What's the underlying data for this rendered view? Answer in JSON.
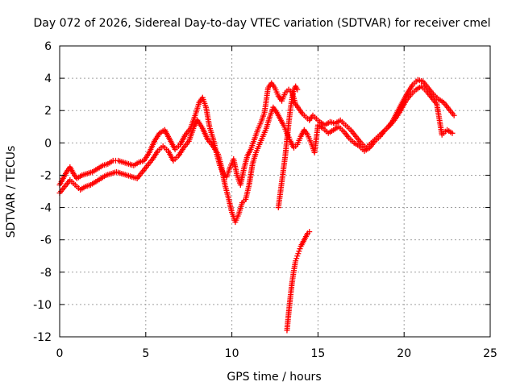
{
  "chart_data": {
    "type": "scatter",
    "title": "Day 072 of 2026, Sidereal Day-to-day VTEC variation (SDTVAR) for receiver cmel",
    "xlabel": "GPS time / hours",
    "ylabel": "SDTVAR / TECUs",
    "xlim": [
      0,
      25
    ],
    "ylim": [
      -12,
      6
    ],
    "x_ticks": [
      0,
      5,
      10,
      15,
      20,
      25
    ],
    "x_tick_labels": [
      "0",
      "5",
      "10",
      "15",
      "20",
      "25"
    ],
    "y_ticks": [
      -12,
      -10,
      -8,
      -6,
      -4,
      -2,
      0,
      2,
      4,
      6
    ],
    "y_tick_labels": [
      "-12",
      "-10",
      "-8",
      "-6",
      "-4",
      "-2",
      "0",
      "2",
      "4",
      "6"
    ],
    "grid": true,
    "marker": "+",
    "series": [
      {
        "name": "SDTVAR-a",
        "color": "#ff0000",
        "points": [
          [
            0.0,
            -2.6
          ],
          [
            0.2,
            -2.2
          ],
          [
            0.4,
            -1.8
          ],
          [
            0.6,
            -1.5
          ],
          [
            0.8,
            -1.9
          ],
          [
            1.0,
            -2.2
          ],
          [
            1.3,
            -2.0
          ],
          [
            1.6,
            -1.9
          ],
          [
            1.9,
            -1.8
          ],
          [
            2.2,
            -1.6
          ],
          [
            2.5,
            -1.4
          ],
          [
            2.8,
            -1.3
          ],
          [
            3.1,
            -1.1
          ],
          [
            3.4,
            -1.1
          ],
          [
            3.7,
            -1.2
          ],
          [
            4.0,
            -1.3
          ],
          [
            4.3,
            -1.4
          ],
          [
            4.6,
            -1.2
          ],
          [
            4.9,
            -1.1
          ],
          [
            5.2,
            -0.6
          ],
          [
            5.5,
            0.1
          ],
          [
            5.8,
            0.6
          ],
          [
            6.1,
            0.8
          ],
          [
            6.4,
            0.2
          ],
          [
            6.7,
            -0.4
          ],
          [
            7.0,
            -0.1
          ],
          [
            7.3,
            0.5
          ],
          [
            7.6,
            0.9
          ],
          [
            7.9,
            1.8
          ],
          [
            8.1,
            2.5
          ],
          [
            8.3,
            2.8
          ],
          [
            8.5,
            2.2
          ],
          [
            8.7,
            1.0
          ],
          [
            8.9,
            0.3
          ],
          [
            9.1,
            -0.6
          ],
          [
            9.3,
            -1.4
          ],
          [
            9.5,
            -1.9
          ],
          [
            9.7,
            -2.1
          ],
          [
            9.9,
            -1.5
          ],
          [
            10.1,
            -1.0
          ],
          [
            10.3,
            -2.0
          ],
          [
            10.5,
            -2.6
          ],
          [
            10.7,
            -1.6
          ],
          [
            10.9,
            -0.8
          ],
          [
            11.1,
            -0.4
          ],
          [
            11.3,
            0.2
          ],
          [
            11.5,
            0.8
          ],
          [
            11.7,
            1.3
          ],
          [
            11.9,
            1.9
          ],
          [
            12.1,
            3.4
          ],
          [
            12.3,
            3.7
          ],
          [
            12.5,
            3.4
          ],
          [
            12.7,
            2.9
          ],
          [
            12.9,
            2.6
          ],
          [
            13.1,
            3.1
          ],
          [
            13.3,
            3.3
          ],
          [
            13.5,
            3.1
          ],
          [
            13.7,
            2.4
          ],
          [
            13.9,
            2.1
          ],
          [
            14.1,
            1.8
          ],
          [
            14.3,
            1.6
          ],
          [
            14.5,
            1.4
          ],
          [
            14.7,
            1.7
          ],
          [
            14.9,
            1.5
          ],
          [
            15.1,
            1.3
          ],
          [
            15.4,
            1.1
          ],
          [
            15.7,
            1.3
          ],
          [
            16.0,
            1.2
          ],
          [
            16.3,
            1.4
          ],
          [
            16.6,
            1.1
          ],
          [
            16.9,
            0.8
          ],
          [
            17.2,
            0.4
          ],
          [
            17.5,
            0.0
          ],
          [
            17.8,
            -0.3
          ],
          [
            18.1,
            0.0
          ],
          [
            18.4,
            0.3
          ],
          [
            18.7,
            0.6
          ],
          [
            19.0,
            0.9
          ],
          [
            19.3,
            1.3
          ],
          [
            19.6,
            1.9
          ],
          [
            19.9,
            2.5
          ],
          [
            20.2,
            3.1
          ],
          [
            20.5,
            3.6
          ],
          [
            20.8,
            3.9
          ],
          [
            21.1,
            3.8
          ],
          [
            21.4,
            3.4
          ],
          [
            21.7,
            3.0
          ],
          [
            22.0,
            2.7
          ],
          [
            22.3,
            2.5
          ],
          [
            22.6,
            2.1
          ],
          [
            22.9,
            1.7
          ]
        ]
      },
      {
        "name": "SDTVAR-b",
        "color": "#ff0000",
        "points": [
          [
            0.0,
            -3.1
          ],
          [
            0.3,
            -2.7
          ],
          [
            0.6,
            -2.3
          ],
          [
            0.9,
            -2.6
          ],
          [
            1.2,
            -2.9
          ],
          [
            1.5,
            -2.7
          ],
          [
            1.8,
            -2.6
          ],
          [
            2.1,
            -2.4
          ],
          [
            2.4,
            -2.2
          ],
          [
            2.7,
            -2.0
          ],
          [
            3.0,
            -1.9
          ],
          [
            3.3,
            -1.8
          ],
          [
            3.6,
            -1.9
          ],
          [
            3.9,
            -2.0
          ],
          [
            4.2,
            -2.1
          ],
          [
            4.5,
            -2.2
          ],
          [
            4.8,
            -1.8
          ],
          [
            5.1,
            -1.4
          ],
          [
            5.4,
            -1.0
          ],
          [
            5.7,
            -0.5
          ],
          [
            6.0,
            -0.2
          ],
          [
            6.3,
            -0.5
          ],
          [
            6.6,
            -1.1
          ],
          [
            6.9,
            -0.8
          ],
          [
            7.2,
            -0.3
          ],
          [
            7.5,
            0.1
          ],
          [
            7.8,
            1.0
          ],
          [
            8.0,
            1.4
          ],
          [
            8.3,
            0.9
          ],
          [
            8.6,
            0.2
          ],
          [
            8.9,
            -0.2
          ],
          [
            9.2,
            -0.7
          ],
          [
            9.4,
            -1.5
          ],
          [
            9.6,
            -2.6
          ],
          [
            9.8,
            -3.4
          ],
          [
            10.0,
            -4.3
          ],
          [
            10.2,
            -4.9
          ],
          [
            10.4,
            -4.4
          ],
          [
            10.6,
            -3.7
          ],
          [
            10.8,
            -3.5
          ],
          [
            11.0,
            -2.6
          ],
          [
            11.2,
            -1.3
          ],
          [
            11.4,
            -0.6
          ],
          [
            11.6,
            -0.1
          ],
          [
            11.8,
            0.4
          ],
          [
            12.0,
            0.9
          ],
          [
            12.2,
            1.6
          ],
          [
            12.4,
            2.2
          ],
          [
            12.6,
            1.9
          ],
          [
            12.8,
            1.5
          ],
          [
            13.0,
            1.1
          ],
          [
            13.2,
            0.6
          ],
          [
            13.4,
            0.1
          ],
          [
            13.6,
            -0.3
          ],
          [
            13.8,
            -0.1
          ],
          [
            14.0,
            0.4
          ],
          [
            14.2,
            0.8
          ],
          [
            14.4,
            0.5
          ],
          [
            14.6,
            0.0
          ],
          [
            14.8,
            -0.6
          ],
          [
            15.0,
            1.1
          ],
          [
            15.3,
            0.9
          ],
          [
            15.6,
            0.6
          ],
          [
            15.9,
            0.8
          ],
          [
            16.2,
            1.0
          ],
          [
            16.5,
            0.7
          ],
          [
            16.8,
            0.3
          ],
          [
            17.1,
            0.0
          ],
          [
            17.4,
            -0.2
          ],
          [
            17.7,
            -0.5
          ],
          [
            18.0,
            -0.3
          ],
          [
            18.3,
            0.1
          ],
          [
            18.6,
            0.4
          ],
          [
            18.9,
            0.8
          ],
          [
            19.2,
            1.1
          ],
          [
            19.5,
            1.5
          ],
          [
            19.8,
            2.0
          ],
          [
            20.1,
            2.6
          ],
          [
            20.4,
            3.0
          ],
          [
            20.7,
            3.3
          ],
          [
            21.0,
            3.5
          ],
          [
            21.3,
            3.2
          ],
          [
            21.6,
            2.8
          ],
          [
            21.9,
            2.4
          ],
          [
            22.2,
            0.5
          ],
          [
            22.5,
            0.8
          ],
          [
            22.8,
            0.6
          ]
        ]
      },
      {
        "name": "SDTVAR-c",
        "color": "#ff0000",
        "points": [
          [
            13.2,
            -11.6
          ],
          [
            13.3,
            -10.5
          ],
          [
            13.4,
            -9.5
          ],
          [
            13.5,
            -8.6
          ],
          [
            13.6,
            -7.9
          ],
          [
            13.7,
            -7.3
          ],
          [
            13.8,
            -7.0
          ],
          [
            13.9,
            -6.7
          ],
          [
            14.0,
            -6.4
          ],
          [
            14.1,
            -6.2
          ],
          [
            14.2,
            -6.0
          ],
          [
            14.3,
            -5.8
          ],
          [
            14.4,
            -5.6
          ],
          [
            14.5,
            -5.5
          ]
        ]
      },
      {
        "name": "SDTVAR-d",
        "color": "#ff0000",
        "points": [
          [
            12.7,
            -4.0
          ],
          [
            12.8,
            -3.2
          ],
          [
            12.9,
            -2.4
          ],
          [
            13.0,
            -1.6
          ],
          [
            13.1,
            -0.8
          ],
          [
            13.2,
            0.2
          ],
          [
            13.3,
            1.2
          ],
          [
            13.4,
            2.1
          ],
          [
            13.5,
            2.8
          ],
          [
            13.6,
            3.3
          ],
          [
            13.7,
            3.5
          ],
          [
            13.8,
            3.3
          ]
        ]
      }
    ]
  }
}
